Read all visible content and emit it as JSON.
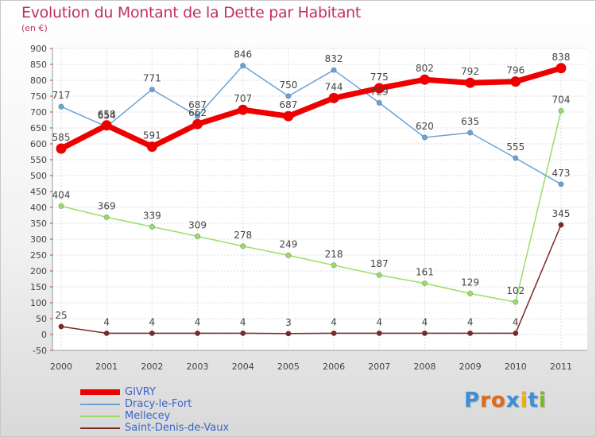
{
  "header": {
    "title": "Evolution du Montant de la Dette par Habitant",
    "unit": "(en €)"
  },
  "logo": {
    "text": "Proxiti",
    "colors": [
      "#3a8fd8",
      "#e06a1a",
      "#e06a1a",
      "#3a8fd8",
      "#e8b010",
      "#3a8fd8",
      "#7ab828"
    ]
  },
  "chart_data": {
    "type": "line",
    "title": "Evolution du Montant de la Dette par Habitant",
    "subtitle": "(en €)",
    "x": [
      "2000",
      "2001",
      "2002",
      "2003",
      "2004",
      "2005",
      "2006",
      "2007",
      "2008",
      "2009",
      "2010",
      "2011"
    ],
    "ylim": [
      -50,
      900
    ],
    "yticks": [
      -50,
      0,
      50,
      100,
      150,
      200,
      250,
      300,
      350,
      400,
      450,
      500,
      550,
      600,
      650,
      700,
      750,
      800,
      850,
      900
    ],
    "grid": true,
    "legend_position": "bottom-left",
    "series": [
      {
        "name": "GIVRY",
        "color": "#ee0000",
        "width": 7,
        "values": [
          585,
          658,
          591,
          662,
          707,
          687,
          744,
          775,
          802,
          792,
          796,
          838
        ]
      },
      {
        "name": "Dracy-le-Fort",
        "color": "#6aa3d8",
        "width": 1.5,
        "values": [
          717,
          654,
          771,
          687,
          846,
          750,
          832,
          729,
          620,
          635,
          555,
          473
        ]
      },
      {
        "name": "Mellecey",
        "color": "#99dd66",
        "width": 1.5,
        "values": [
          404,
          369,
          339,
          309,
          278,
          249,
          218,
          187,
          161,
          129,
          102,
          704
        ]
      },
      {
        "name": "Saint-Denis-de-Vaux",
        "color": "#7a2828",
        "width": 1.5,
        "values": [
          25,
          4,
          4,
          4,
          4,
          3,
          4,
          4,
          4,
          4,
          4,
          345
        ]
      }
    ],
    "point_labels": [
      [
        "585",
        "658",
        "591",
        "662",
        "707",
        "687",
        "744",
        "775",
        "802",
        "792",
        "796",
        "838"
      ],
      [
        "717",
        "654",
        "771",
        "687",
        "846",
        "750",
        "832",
        "729",
        "620",
        "635",
        "555",
        "473"
      ],
      [
        "404",
        "369",
        "339",
        "309",
        "278",
        "249",
        "218",
        "187",
        "161",
        "129",
        "102",
        "704"
      ],
      [
        "25",
        "4",
        "4",
        "4",
        "4",
        "3",
        "4",
        "4",
        "4",
        "4",
        "4",
        "345"
      ]
    ]
  }
}
